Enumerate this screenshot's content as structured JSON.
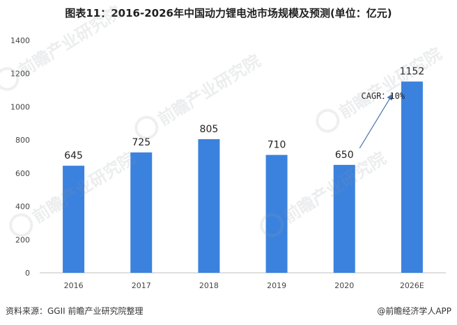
{
  "chart_data": {
    "type": "bar",
    "title": "图表11：2016-2026年中国动力锂电池市场规模及预测(单位：亿元)",
    "categories": [
      "2016",
      "2017",
      "2018",
      "2019",
      "2020",
      "2026E"
    ],
    "values": [
      645,
      725,
      805,
      710,
      650,
      1152
    ],
    "value_labels": [
      "645",
      "725",
      "805",
      "710",
      "650",
      "1152"
    ],
    "ylim": [
      0,
      1400
    ],
    "yticks": [
      0,
      200,
      400,
      600,
      800,
      1000,
      1200,
      1400
    ],
    "xlabel": "",
    "ylabel": "",
    "grid": false,
    "bar_color": "#3b82de",
    "annotation": {
      "text": "CAGR：10%",
      "from_category": "2020",
      "to_category": "2026E"
    }
  },
  "footer": {
    "source": "资料来源：GGII 前瞻产业研究院整理",
    "brand": "@前瞻经济学人APP"
  },
  "watermark": {
    "text": "前瞻产业研究院"
  }
}
